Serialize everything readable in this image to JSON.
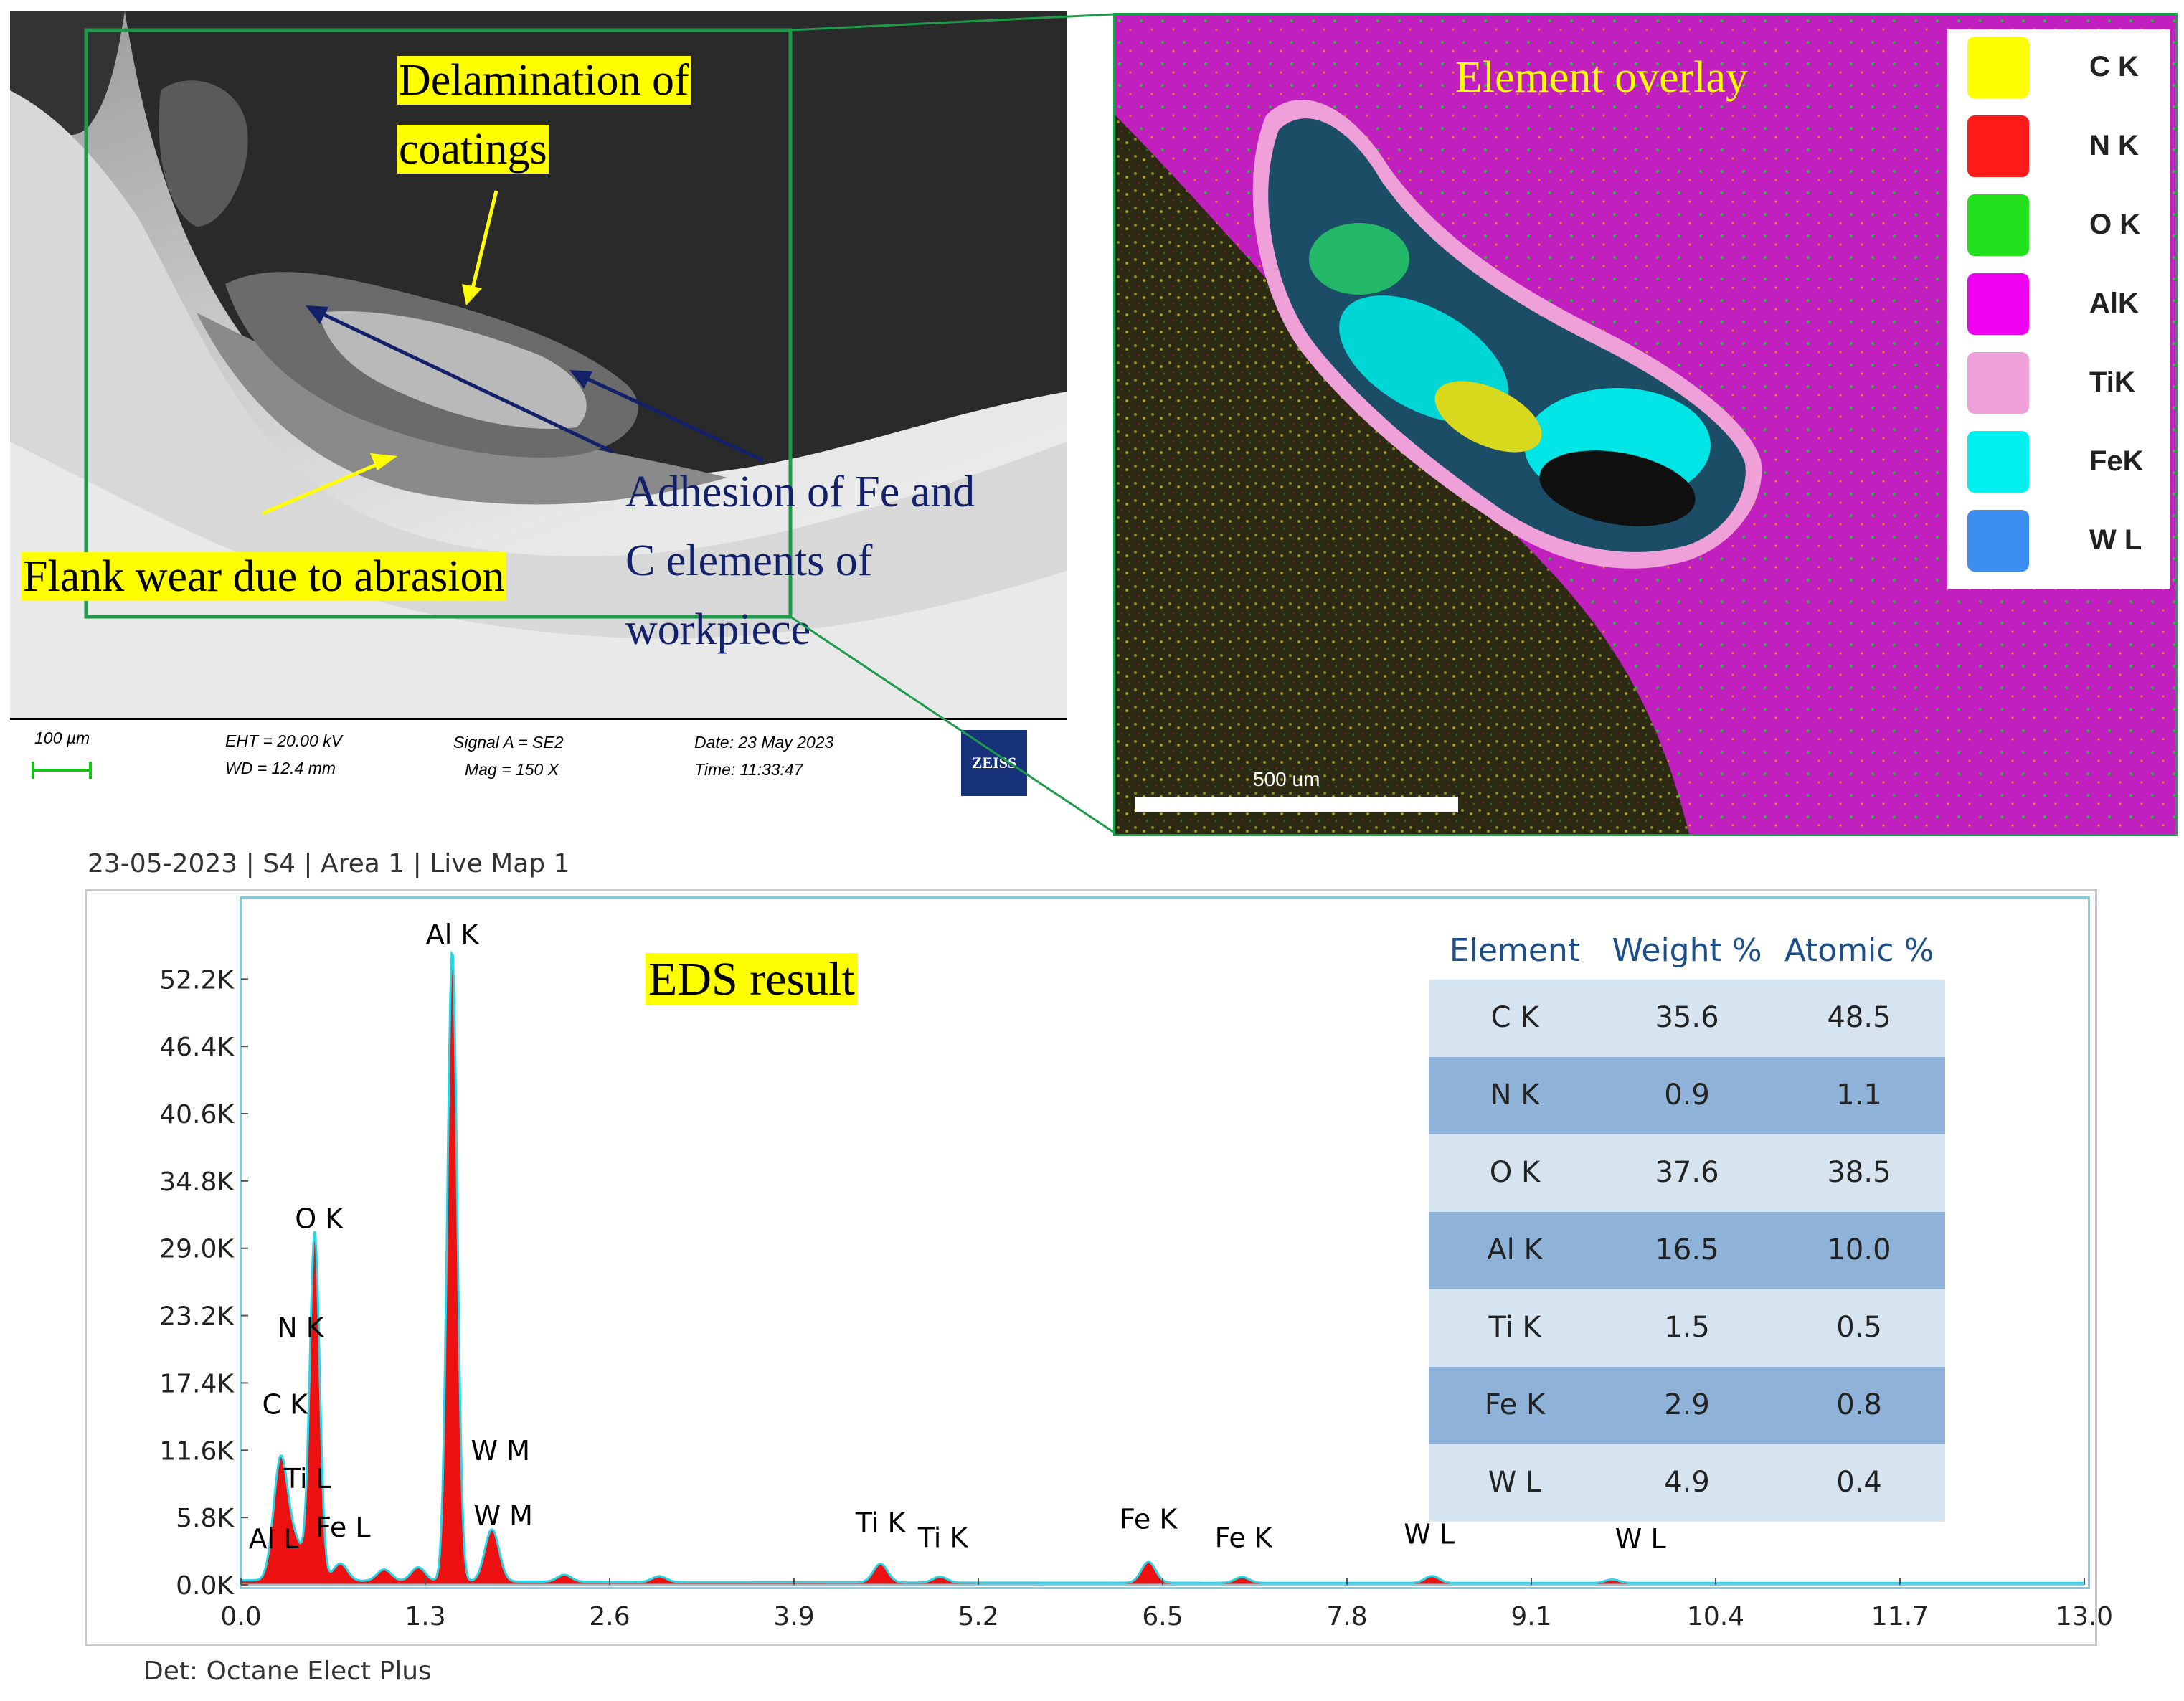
{
  "sem_image": {
    "labels": {
      "delamination": [
        "Delamination of",
        "coatings"
      ],
      "flank_wear": "Flank wear due to abrasion",
      "adhesion": [
        "Adhesion of Fe and",
        "C elements of",
        "workpiece"
      ]
    },
    "info_bar": {
      "scale": "100 µm",
      "eht": "EHT = 20.00 kV",
      "wd": "WD = 12.4 mm",
      "signal": "Signal A = SE2",
      "mag": "Mag =    150 X",
      "date": "Date: 23 May 2023",
      "time": "Time: 11:33:47",
      "logo": "ZEISS"
    }
  },
  "element_map": {
    "title": "Element overlay",
    "scale_label": "500 um",
    "legend": [
      {
        "label": "C K",
        "color": "#ffff00"
      },
      {
        "label": "N K",
        "color": "#ff1a1a"
      },
      {
        "label": "O K",
        "color": "#22e01c"
      },
      {
        "label": "AlK",
        "color": "#f000f0"
      },
      {
        "label": "TiK",
        "color": "#f0a0d8"
      },
      {
        "label": "FeK",
        "color": "#00f0f0"
      },
      {
        "label": "W L",
        "color": "#3c8ef0"
      }
    ]
  },
  "eds": {
    "header": "23-05-2023 | S4 | Area 1 | Live Map 1",
    "title": "EDS result",
    "footer": "Det: Octane Elect Plus",
    "table": {
      "headers": [
        "Element",
        "Weight %",
        "Atomic %"
      ],
      "rows": [
        [
          "C K",
          "35.6",
          "48.5"
        ],
        [
          "N K",
          "0.9",
          "1.1"
        ],
        [
          "O K",
          "37.6",
          "38.5"
        ],
        [
          "Al K",
          "16.5",
          "10.0"
        ],
        [
          "Ti K",
          "1.5",
          "0.5"
        ],
        [
          "Fe K",
          "2.9",
          "0.8"
        ],
        [
          "W L",
          "4.9",
          "0.4"
        ]
      ]
    }
  },
  "chart_data": {
    "type": "area",
    "xlim": [
      0,
      13.0
    ],
    "ylim": [
      0,
      55.0
    ],
    "x_ticks": [
      "0.0",
      "1.3",
      "2.6",
      "3.9",
      "5.2",
      "6.5",
      "7.8",
      "9.1",
      "10.4",
      "11.7",
      "13.0"
    ],
    "y_ticks": [
      "0.0K",
      "5.8K",
      "11.6K",
      "17.4K",
      "23.2K",
      "29.0K",
      "34.8K",
      "40.6K",
      "46.4K",
      "52.2K"
    ],
    "y_tick_values": [
      0,
      5.8,
      11.6,
      17.4,
      23.2,
      29.0,
      34.8,
      40.6,
      46.4,
      52.2
    ],
    "x_tick_values": [
      0,
      1.3,
      2.6,
      3.9,
      5.2,
      6.5,
      7.8,
      9.1,
      10.4,
      11.7,
      13.0
    ],
    "peaks": [
      {
        "x": 0.28,
        "y": 10.5
      },
      {
        "x": 0.39,
        "y": 3.0
      },
      {
        "x": 0.52,
        "y": 30.0
      },
      {
        "x": 0.7,
        "y": 1.5
      },
      {
        "x": 1.01,
        "y": 1.0
      },
      {
        "x": 1.25,
        "y": 1.2
      },
      {
        "x": 1.49,
        "y": 54.5
      },
      {
        "x": 1.77,
        "y": 4.5
      },
      {
        "x": 2.28,
        "y": 0.6
      },
      {
        "x": 2.95,
        "y": 0.5
      },
      {
        "x": 4.51,
        "y": 1.6
      },
      {
        "x": 4.93,
        "y": 0.5
      },
      {
        "x": 6.4,
        "y": 1.8
      },
      {
        "x": 7.06,
        "y": 0.5
      },
      {
        "x": 8.4,
        "y": 0.6
      },
      {
        "x": 9.67,
        "y": 0.3
      }
    ],
    "peak_labels": [
      {
        "text": "Al K",
        "x": 1.49,
        "y": 54.5
      },
      {
        "text": "O  K",
        "x": 0.55,
        "y": 30.0
      },
      {
        "text": "N  K",
        "x": 0.42,
        "y": 20.6
      },
      {
        "text": "C  K",
        "x": 0.31,
        "y": 14.0
      },
      {
        "text": "Ti L",
        "x": 0.47,
        "y": 7.6
      },
      {
        "text": "Al L",
        "x": 0.23,
        "y": 2.4
      },
      {
        "text": "Fe L",
        "x": 0.72,
        "y": 3.4
      },
      {
        "text": "W  M",
        "x": 1.83,
        "y": 10.0
      },
      {
        "text": "W  M",
        "x": 1.85,
        "y": 4.4
      },
      {
        "text": "Ti K",
        "x": 4.51,
        "y": 3.8
      },
      {
        "text": "Ti K",
        "x": 4.95,
        "y": 2.5
      },
      {
        "text": "Fe K",
        "x": 6.4,
        "y": 4.1
      },
      {
        "text": "Fe K",
        "x": 7.07,
        "y": 2.5
      },
      {
        "text": "W  L",
        "x": 8.38,
        "y": 2.8
      },
      {
        "text": "W  L",
        "x": 9.87,
        "y": 2.4
      }
    ]
  }
}
